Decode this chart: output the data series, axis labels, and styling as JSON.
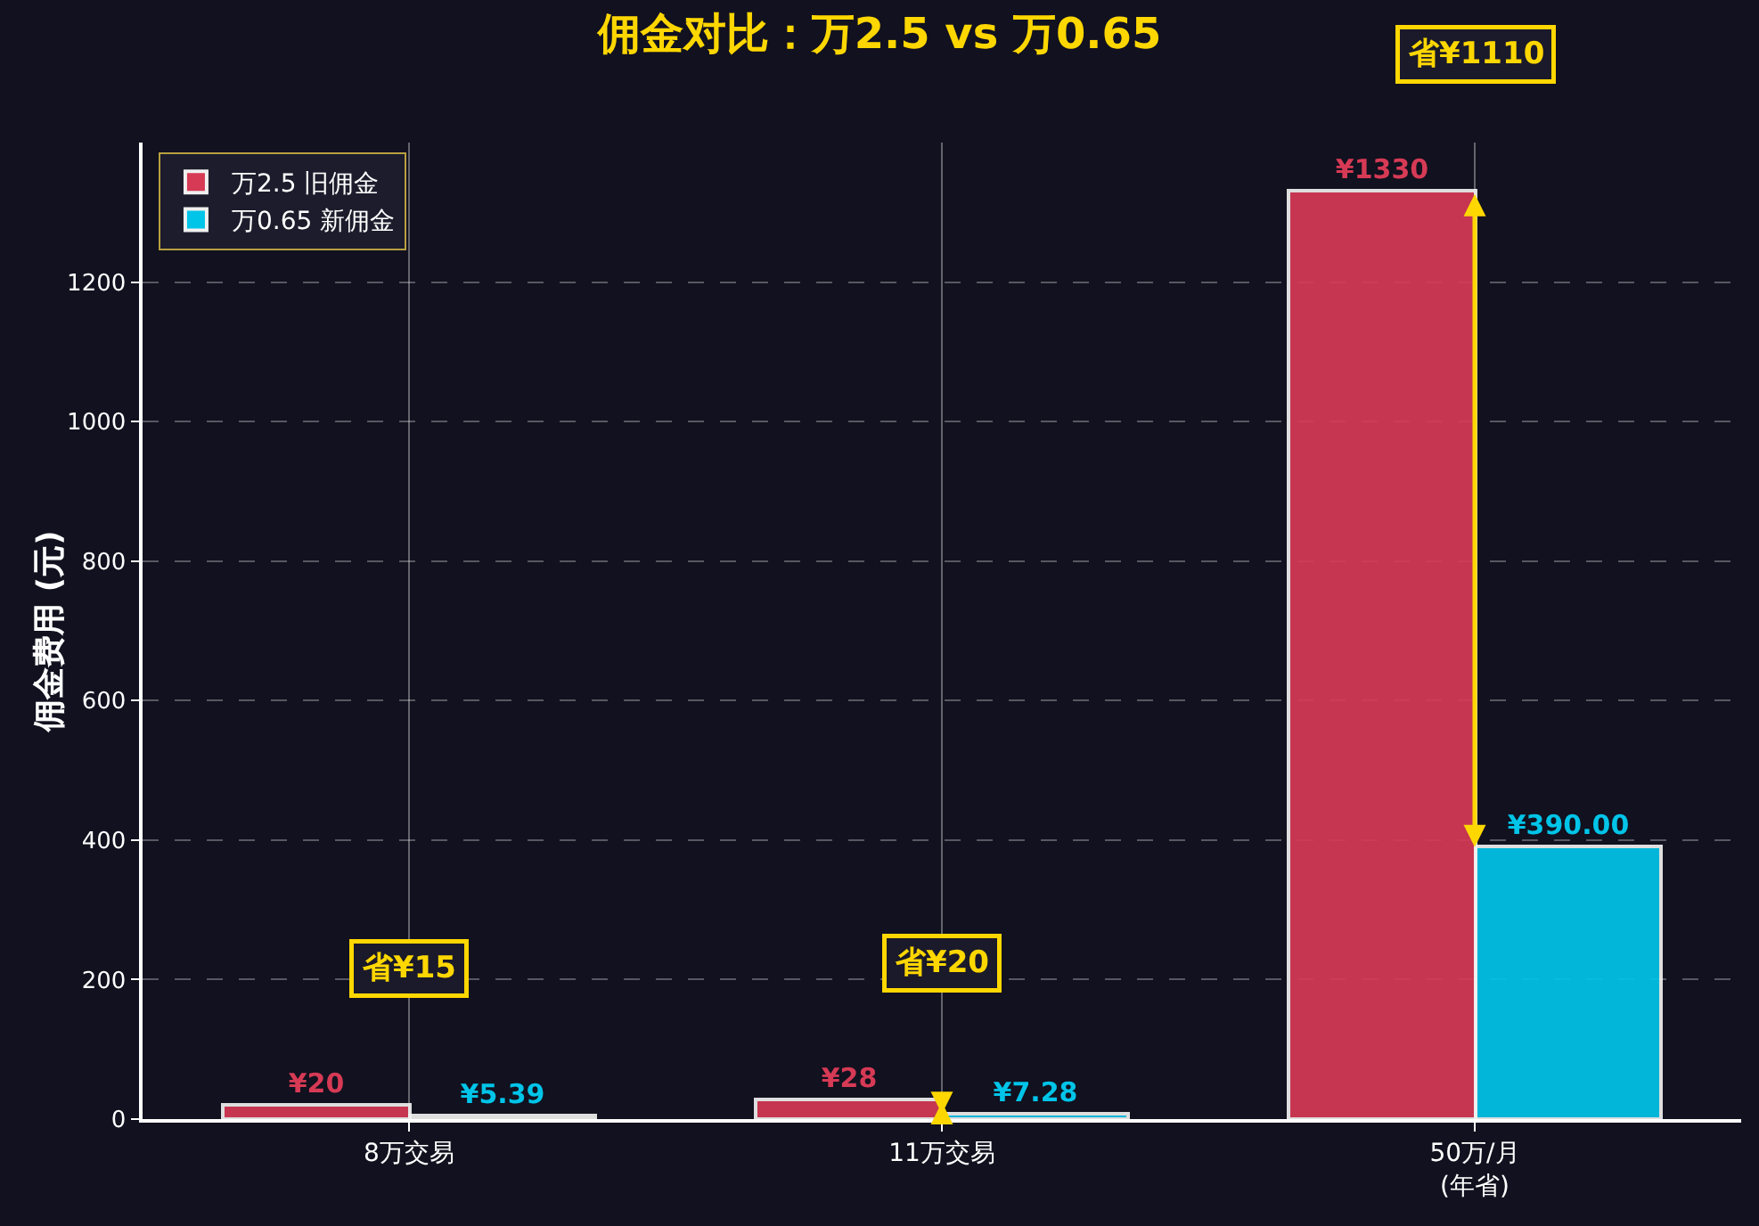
{
  "chart_data": {
    "type": "bar",
    "title": "佣金对比：万2.5 vs 万0.65",
    "ylabel": "佣金费用 (元)",
    "categories": [
      "8万交易",
      "11万交易",
      "50万/月\n(年省)"
    ],
    "series": [
      {
        "name": "万2.5 旧佣金",
        "color": "#d63a55",
        "values": [
          20,
          28,
          1330
        ],
        "value_labels": [
          "¥20",
          "¥28",
          "¥1330"
        ]
      },
      {
        "name": "万0.65 新佣金",
        "color": "#00c4e8",
        "values": [
          5.39,
          7.28,
          390
        ],
        "value_labels": [
          "¥5.39",
          "¥7.28",
          "¥390.00"
        ]
      }
    ],
    "annotations": [
      "省¥15",
      "省¥20",
      "省¥1110"
    ],
    "ylim": [
      0,
      1400
    ],
    "yticks": [
      0,
      200,
      400,
      600,
      800,
      1000,
      1200
    ],
    "grid": true,
    "legend": "top left"
  }
}
